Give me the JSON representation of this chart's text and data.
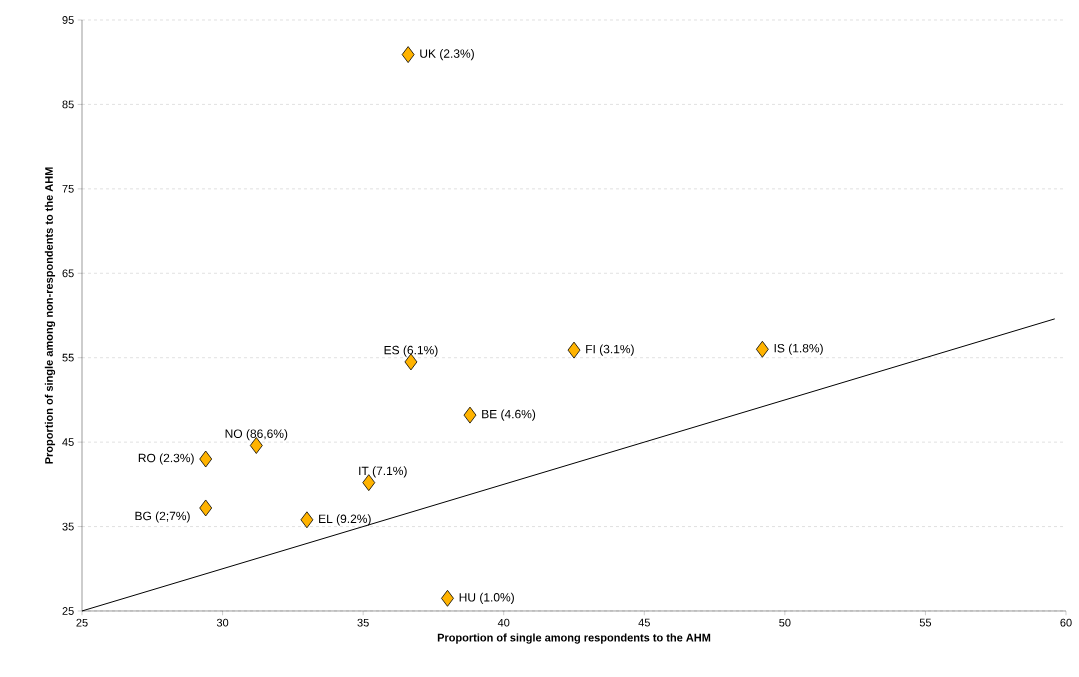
{
  "chart_data": {
    "type": "scatter",
    "xlabel": "Proportion of single among respondents to the AHM",
    "ylabel": "Proportion of single among non-respondents  to the AHM",
    "x": [
      36.6,
      36.7,
      42.5,
      49.2,
      38.8,
      31.2,
      29.4,
      35.2,
      29.4,
      33.0,
      38.0
    ],
    "series": [
      {
        "color": "#ffb300",
        "values": [
          90.9,
          54.5,
          55.9,
          56.0,
          48.2,
          44.6,
          43.0,
          40.2,
          37.2,
          35.8,
          26.5
        ],
        "marker": "diamond"
      },
      {
        "type": "line",
        "color": "#000000",
        "x": [
          25,
          59.6
        ],
        "values": [
          25,
          59.6
        ],
        "marker": "none",
        "line_style": "solid"
      }
    ],
    "annotations": [
      {
        "text": "UK (2.3%)",
        "x": 36.6,
        "y": 90.9
      },
      {
        "text": "ES (6.1%)",
        "x": 36.7,
        "y": 54.5
      },
      {
        "text": "FI (3.1%)",
        "x": 42.5,
        "y": 55.9
      },
      {
        "text": "IS (1.8%)",
        "x": 49.2,
        "y": 56.0
      },
      {
        "text": "BE (4.6%)",
        "x": 38.8,
        "y": 48.2
      },
      {
        "text": "NO (86,6%)",
        "x": 31.2,
        "y": 44.6
      },
      {
        "text": "RO (2.3%)",
        "x": 29.4,
        "y": 43.0
      },
      {
        "text": "IT (7.1%)",
        "x": 35.2,
        "y": 40.2
      },
      {
        "text": "BG (2;7%)",
        "x": 29.4,
        "y": 37.2
      },
      {
        "text": "EL (9.2%)",
        "x": 33.0,
        "y": 35.8
      },
      {
        "text": "HU (1.0%)",
        "x": 38.0,
        "y": 26.5
      }
    ],
    "xlim": [
      25,
      60
    ],
    "xticks": [
      25,
      30,
      35,
      40,
      45,
      50,
      55,
      60
    ],
    "ylim": [
      25,
      95
    ],
    "yticks": [
      25,
      35,
      45,
      55,
      65,
      75,
      85,
      95
    ],
    "grid": "y"
  }
}
